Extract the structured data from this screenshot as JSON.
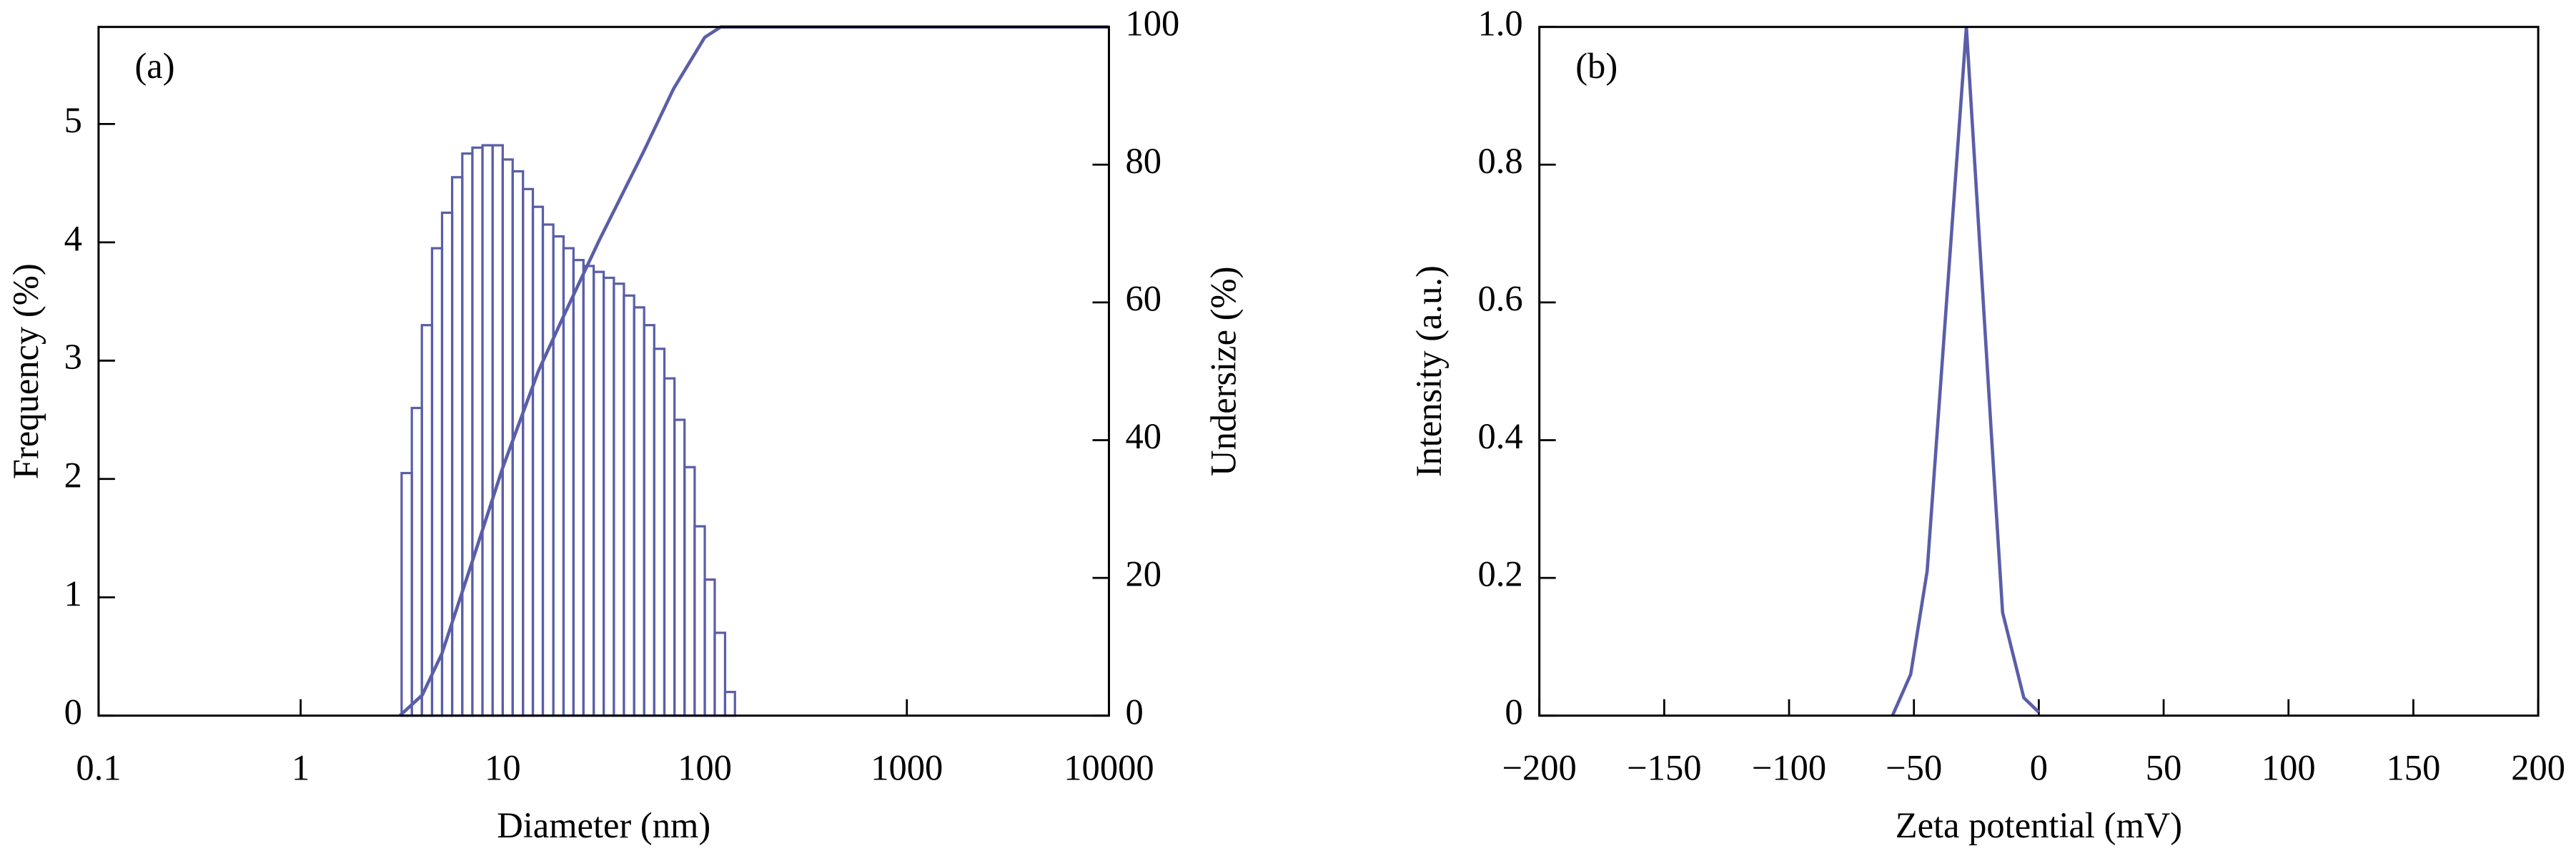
{
  "chart_data": [
    {
      "type": "histogram",
      "label": "(a)",
      "xlabel": "Diameter (nm)",
      "ylabel": "Frequency (%)",
      "y2label": "Undersize (%)",
      "xscale": "log",
      "xlim": [
        0.1,
        10000
      ],
      "xticks": [
        0.1,
        1,
        10,
        100,
        1000,
        10000
      ],
      "ylim": [
        0,
        5.82
      ],
      "yticks": [
        0,
        1,
        2,
        3,
        4,
        5
      ],
      "y2lim": [
        0,
        100
      ],
      "y2ticks": [
        0,
        20,
        40,
        60,
        80,
        100
      ],
      "color": "#5a5ea8",
      "bins": [
        3.16,
        3.55,
        3.98,
        4.47,
        5.01,
        5.62,
        6.31,
        7.08,
        7.94,
        8.91,
        10,
        11.2,
        12.6,
        14.1,
        15.8,
        17.8,
        20,
        22.4,
        25.1,
        28.2,
        31.6,
        35.5,
        39.8,
        44.7,
        50.1,
        56.2,
        63.1,
        70.8,
        79.4,
        89.1,
        100,
        112,
        126,
        141
      ],
      "values": [
        2.05,
        2.6,
        3.3,
        3.95,
        4.25,
        4.55,
        4.75,
        4.8,
        4.82,
        4.82,
        4.7,
        4.6,
        4.45,
        4.3,
        4.15,
        4.05,
        3.95,
        3.85,
        3.8,
        3.75,
        3.7,
        3.65,
        3.55,
        3.45,
        3.3,
        3.1,
        2.85,
        2.5,
        2.1,
        1.6,
        1.15,
        0.7,
        0.2
      ],
      "series": [
        {
          "axis": "y2",
          "color": "#5a5ea8",
          "x": [
            3.1,
            4,
            5,
            7,
            10,
            15,
            20,
            30,
            50,
            70,
            100,
            120,
            10000
          ],
          "values": [
            0,
            3,
            9,
            22,
            36,
            50,
            58,
            69,
            82,
            91,
            98.5,
            100,
            100
          ]
        }
      ]
    },
    {
      "type": "line",
      "label": "(b)",
      "xlabel": "Zeta potential (mV)",
      "ylabel": "Intensity (a.u.)",
      "xlim": [
        -200,
        200
      ],
      "xticks": [
        {
          "value": -200,
          "label": "−200"
        },
        {
          "value": -150,
          "label": "−150"
        },
        {
          "value": -100,
          "label": "−100"
        },
        {
          "value": -50,
          "label": "−50"
        },
        0,
        50,
        100,
        150,
        200
      ],
      "ylim": [
        0,
        1
      ],
      "yticks": [
        0,
        0.2,
        0.4,
        0.6,
        0.8,
        {
          "value": 1,
          "label": "1.0"
        }
      ],
      "color": "#5a5ea8",
      "x": [
        -58.6,
        -51.3,
        -44.7,
        -29,
        -19,
        -14.5,
        -6,
        0
      ],
      "values": [
        0,
        0.06,
        0.21,
        1.0,
        0.41,
        0.15,
        0.026,
        0.005
      ]
    }
  ]
}
